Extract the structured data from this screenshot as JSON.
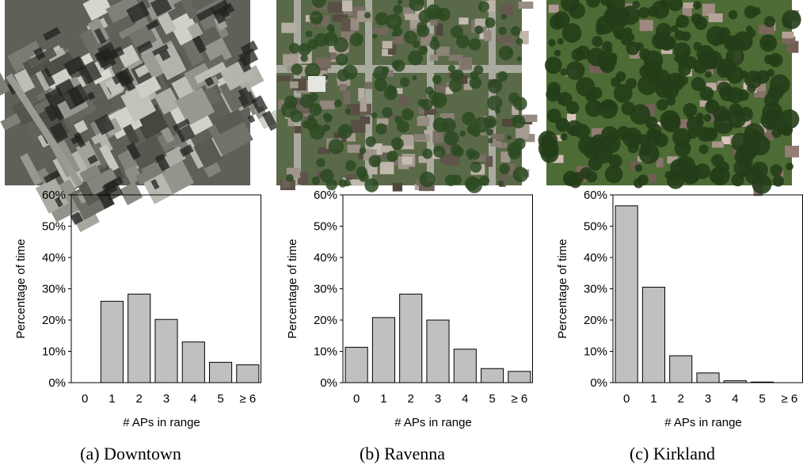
{
  "chart_data": [
    {
      "type": "bar",
      "caption": "(a) Downtown",
      "photo_style": "downtown",
      "categories": [
        "0",
        "1",
        "2",
        "3",
        "4",
        "5",
        "≥ 6"
      ],
      "values": [
        0,
        26,
        28.3,
        20.2,
        13,
        6.5,
        5.7
      ],
      "xlabel": "# APs in range",
      "ylabel": "Percentage of time",
      "ylim": [
        0,
        60
      ],
      "yticks": [
        "0%",
        "10%",
        "20%",
        "30%",
        "40%",
        "50%",
        "60%"
      ],
      "grid": false,
      "bar_color": "#c0c0c0"
    },
    {
      "type": "bar",
      "caption": "(b) Ravenna",
      "photo_style": "residential",
      "categories": [
        "0",
        "1",
        "2",
        "3",
        "4",
        "5",
        "≥ 6"
      ],
      "values": [
        11.3,
        20.8,
        28.3,
        20,
        10.7,
        4.5,
        3.6
      ],
      "xlabel": "# APs in range",
      "ylabel": "Percentage of time",
      "ylim": [
        0,
        60
      ],
      "yticks": [
        "0%",
        "10%",
        "20%",
        "30%",
        "40%",
        "50%",
        "60%"
      ],
      "grid": false,
      "bar_color": "#c0c0c0"
    },
    {
      "type": "bar",
      "caption": "(c) Kirkland",
      "photo_style": "suburban",
      "categories": [
        "0",
        "1",
        "2",
        "3",
        "4",
        "5",
        "≥ 6"
      ],
      "values": [
        56.5,
        30.5,
        8.6,
        3.1,
        0.6,
        0.2,
        0
      ],
      "xlabel": "# APs in range",
      "ylabel": "Percentage of time",
      "ylim": [
        0,
        60
      ],
      "yticks": [
        "0%",
        "10%",
        "20%",
        "30%",
        "40%",
        "50%",
        "60%"
      ],
      "grid": false,
      "bar_color": "#c0c0c0"
    }
  ]
}
